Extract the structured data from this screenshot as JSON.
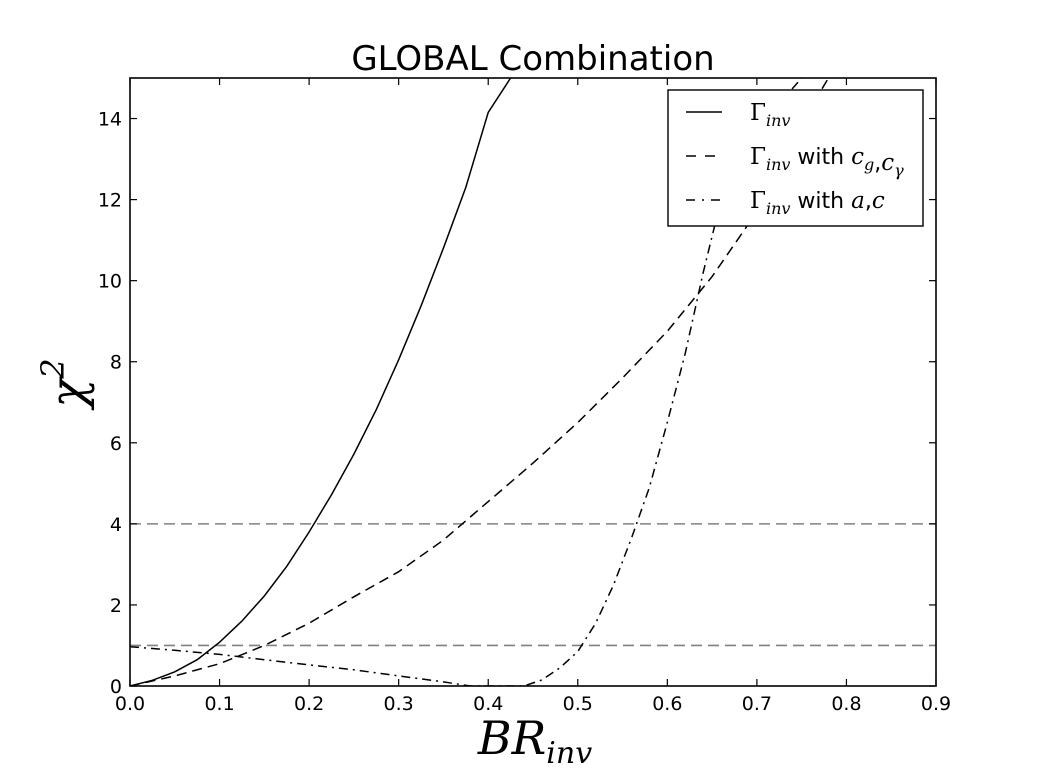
{
  "chart_data": {
    "type": "line",
    "title": "GLOBAL Combination",
    "xlabel": {
      "base": "BR",
      "sub": "inv"
    },
    "ylabel": {
      "base": "χ",
      "sup": "2"
    },
    "xlim": [
      0.0,
      0.9
    ],
    "ylim": [
      0,
      15
    ],
    "xticks": [
      "0.0",
      "0.1",
      "0.2",
      "0.3",
      "0.4",
      "0.5",
      "0.6",
      "0.7",
      "0.8",
      "0.9"
    ],
    "yticks": [
      "0",
      "2",
      "4",
      "6",
      "8",
      "10",
      "12",
      "14"
    ],
    "hlines": [
      1,
      4
    ],
    "legend_position": "top-right",
    "series": [
      {
        "style": "solid",
        "legend": {
          "sym": "Γ",
          "sub": "inv",
          "text": "",
          "extra": []
        },
        "x": [
          0.0,
          0.025,
          0.05,
          0.075,
          0.1,
          0.125,
          0.15,
          0.175,
          0.2,
          0.225,
          0.25,
          0.275,
          0.3,
          0.325,
          0.35,
          0.375,
          0.4,
          0.425
        ],
        "y": [
          0.0,
          0.14,
          0.35,
          0.65,
          1.08,
          1.6,
          2.22,
          2.95,
          3.8,
          4.72,
          5.72,
          6.82,
          8.05,
          9.38,
          10.8,
          12.3,
          14.15,
          15.0
        ]
      },
      {
        "style": "dashed",
        "legend": {
          "sym": "Γ",
          "sub": "inv",
          "text": " with ",
          "extra": [
            {
              "base": "c",
              "sub": "g"
            },
            {
              "base": "c",
              "sub": "γ"
            }
          ]
        },
        "x": [
          0.0,
          0.05,
          0.1,
          0.15,
          0.2,
          0.25,
          0.3,
          0.35,
          0.4,
          0.45,
          0.5,
          0.55,
          0.6,
          0.65,
          0.7,
          0.75,
          0.78
        ],
        "y": [
          0.0,
          0.25,
          0.55,
          1.0,
          1.55,
          2.2,
          2.82,
          3.6,
          4.55,
          5.5,
          6.5,
          7.6,
          8.75,
          10.1,
          11.7,
          13.9,
          15.0
        ]
      },
      {
        "style": "dashdot",
        "legend": {
          "sym": "Γ",
          "sub": "inv",
          "text": " with ",
          "extra": [
            {
              "base": "a",
              "sub": ""
            },
            {
              "base": "c",
              "sub": ""
            }
          ]
        },
        "x": [
          0.0,
          0.05,
          0.1,
          0.15,
          0.2,
          0.25,
          0.3,
          0.35,
          0.38,
          0.44,
          0.46,
          0.48,
          0.5,
          0.52,
          0.54,
          0.56,
          0.58,
          0.6,
          0.62,
          0.64,
          0.66,
          0.68,
          0.7,
          0.73,
          0.75
        ],
        "y": [
          0.97,
          0.88,
          0.78,
          0.65,
          0.52,
          0.4,
          0.25,
          0.1,
          0.0,
          0.0,
          0.15,
          0.45,
          0.85,
          1.55,
          2.5,
          3.65,
          4.9,
          6.5,
          8.2,
          10.2,
          12.0,
          13.2,
          13.8,
          14.5,
          15.0
        ]
      }
    ]
  }
}
